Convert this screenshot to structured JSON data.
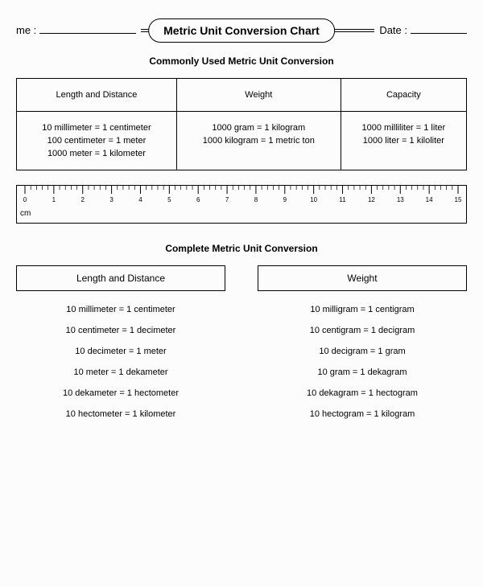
{
  "header": {
    "name_label": "me :",
    "date_label": "Date :",
    "title": "Metric Unit Conversion Chart"
  },
  "section1": {
    "heading": "Commonly Used Metric Unit Conversion",
    "columns": [
      "Length and Distance",
      "Weight",
      "Capacity"
    ],
    "col1": [
      "10 millimeter = 1 centimeter",
      "100 centimeter = 1 meter",
      "1000 meter = 1 kilometer"
    ],
    "col2": [
      "1000 gram = 1 kilogram",
      "1000 kilogram = 1 metric ton"
    ],
    "col3": [
      "1000 milliliter = 1 liter",
      "1000 liter = 1 kiloliter"
    ]
  },
  "ruler": {
    "unit": "cm",
    "ticks": [
      "0",
      "1",
      "2",
      "3",
      "4",
      "5",
      "6",
      "7",
      "8",
      "9",
      "10",
      "11",
      "12",
      "13",
      "14",
      "15"
    ]
  },
  "section2": {
    "heading": "Complete Metric Unit Conversion",
    "left_title": "Length and Distance",
    "left_rows": [
      "10 millimeter = 1 centimeter",
      "10 centimeter = 1 decimeter",
      "10 decimeter = 1 meter",
      "10 meter  =  1 dekameter",
      "10 dekameter = 1 hectometer",
      "10 hectometer = 1 kilometer"
    ],
    "right_title": "Weight",
    "right_rows": [
      "10 milligram = 1 centigram",
      "10 centigram = 1 decigram",
      "10 decigram = 1 gram",
      "10 gram  =  1 dekagram",
      "10 dekagram = 1 hectogram",
      "10 hectogram = 1 kilogram"
    ]
  }
}
